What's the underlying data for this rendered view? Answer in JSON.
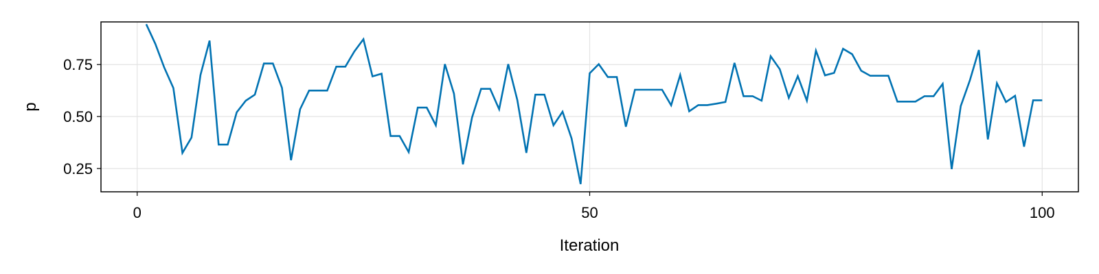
{
  "chart_data": {
    "type": "line",
    "title": "",
    "xlabel": "Iteration",
    "ylabel": "p",
    "xlim": [
      -4,
      104
    ],
    "ylim": [
      0.138,
      0.955
    ],
    "xticks": [
      0,
      50,
      100
    ],
    "xtick_labels": [
      "0",
      "50",
      "100"
    ],
    "yticks": [
      0.25,
      0.5,
      0.75
    ],
    "ytick_labels": [
      "0.25",
      "0.50",
      "0.75"
    ],
    "grid": true,
    "legend": "none",
    "series": [
      {
        "color": "#0072b2",
        "x": [
          1,
          2,
          3,
          4,
          5,
          6,
          7,
          8,
          9,
          10,
          11,
          12,
          13,
          14,
          15,
          16,
          17,
          18,
          19,
          20,
          21,
          22,
          23,
          24,
          25,
          26,
          27,
          28,
          29,
          30,
          31,
          32,
          33,
          34,
          35,
          36,
          37,
          38,
          39,
          40,
          41,
          42,
          43,
          44,
          45,
          46,
          47,
          48,
          49,
          50,
          51,
          52,
          53,
          54,
          55,
          56,
          57,
          58,
          59,
          60,
          61,
          62,
          63,
          64,
          65,
          66,
          67,
          68,
          69,
          70,
          71,
          72,
          73,
          74,
          75,
          76,
          77,
          78,
          79,
          80,
          81,
          82,
          83,
          84,
          85,
          86,
          87,
          88,
          89,
          90,
          91,
          92,
          93,
          94,
          95,
          96,
          97,
          98,
          99,
          100
        ],
        "y": [
          0.944,
          0.85,
          0.735,
          0.637,
          0.325,
          0.399,
          0.7,
          0.865,
          0.365,
          0.365,
          0.52,
          0.576,
          0.605,
          0.755,
          0.755,
          0.638,
          0.29,
          0.535,
          0.625,
          0.625,
          0.625,
          0.74,
          0.74,
          0.813,
          0.872,
          0.693,
          0.706,
          0.406,
          0.406,
          0.329,
          0.543,
          0.543,
          0.458,
          0.752,
          0.61,
          0.27,
          0.495,
          0.633,
          0.633,
          0.535,
          0.752,
          0.58,
          0.325,
          0.605,
          0.605,
          0.458,
          0.523,
          0.395,
          0.175,
          0.708,
          0.752,
          0.69,
          0.69,
          0.451,
          0.629,
          0.629,
          0.629,
          0.629,
          0.554,
          0.7,
          0.525,
          0.555,
          0.555,
          0.562,
          0.57,
          0.758,
          0.598,
          0.598,
          0.576,
          0.79,
          0.728,
          0.59,
          0.694,
          0.576,
          0.817,
          0.698,
          0.71,
          0.826,
          0.8,
          0.72,
          0.696,
          0.696,
          0.696,
          0.572,
          0.572,
          0.572,
          0.598,
          0.598,
          0.657,
          0.247,
          0.55,
          0.673,
          0.82,
          0.39,
          0.66,
          0.57,
          0.6,
          0.355,
          0.578,
          0.578
        ]
      }
    ]
  }
}
